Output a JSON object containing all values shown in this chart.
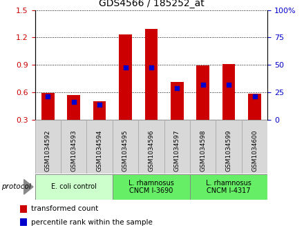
{
  "title": "GDS4566 / 185252_at",
  "categories": [
    "GSM1034592",
    "GSM1034593",
    "GSM1034594",
    "GSM1034595",
    "GSM1034596",
    "GSM1034597",
    "GSM1034598",
    "GSM1034599",
    "GSM1034600"
  ],
  "red_values": [
    0.595,
    0.575,
    0.505,
    1.235,
    1.295,
    0.715,
    0.895,
    0.91,
    0.585
  ],
  "blue_values": [
    0.555,
    0.495,
    0.465,
    0.875,
    0.875,
    0.645,
    0.685,
    0.685,
    0.555
  ],
  "left_ylim": [
    0.3,
    1.5
  ],
  "left_yticks": [
    0.3,
    0.6,
    0.9,
    1.2,
    1.5
  ],
  "right_ylim": [
    0.0,
    100.0
  ],
  "right_yticks": [
    0,
    25,
    50,
    75,
    100
  ],
  "right_yticklabels": [
    "0",
    "25",
    "50",
    "75",
    "100%"
  ],
  "bar_color": "#cc0000",
  "dot_color": "#0000cc",
  "fig_bg": "#ffffff",
  "plot_bg": "#ffffff",
  "label_box_bg": "#d8d8d8",
  "group_colors": [
    "#ccffcc",
    "#66ee66",
    "#66ee66"
  ],
  "group_labels": [
    "E. coli control",
    "L. rhamnosus\nCNCM I-3690",
    "L. rhamnosus\nCNCM I-4317"
  ],
  "group_ranges": [
    [
      0,
      2
    ],
    [
      3,
      5
    ],
    [
      6,
      8
    ]
  ],
  "protocol_label": "protocol",
  "legend_red": "transformed count",
  "legend_blue": "percentile rank within the sample",
  "bar_width": 0.5,
  "xlim": [
    -0.5,
    8.5
  ],
  "left_tick_color": "#cc0000",
  "right_tick_color": "#0000cc"
}
